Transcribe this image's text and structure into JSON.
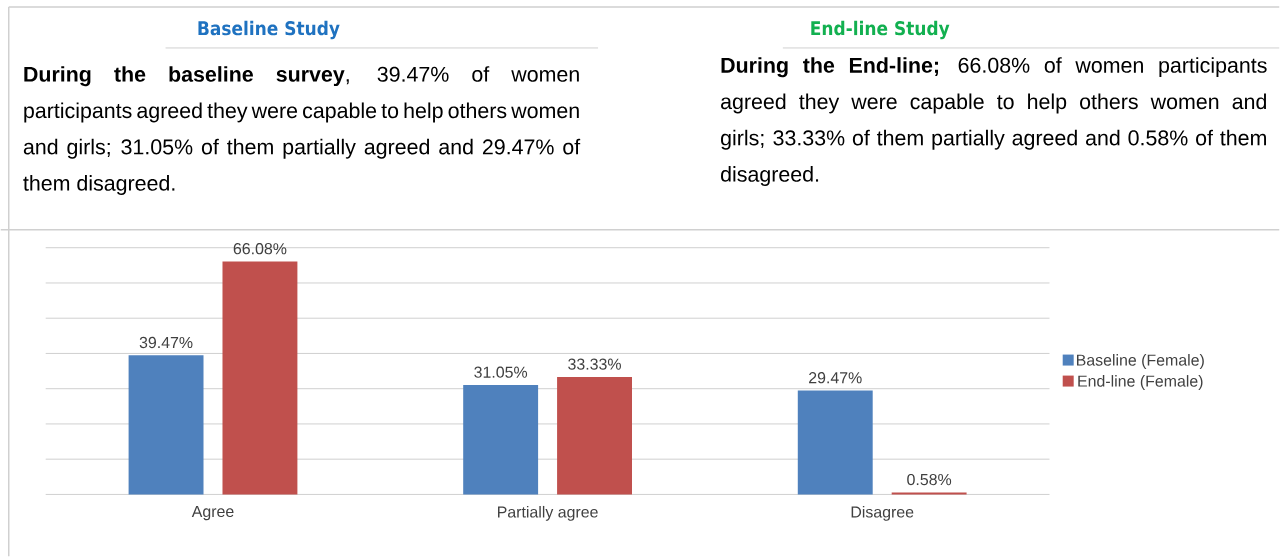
{
  "chart_data": [
    {
      "type": "other",
      "title": "Baseline Study",
      "annotations": [
        "**During the baseline survey**, 39.47% of women participants agreed they were capable to help others women and girls; 31.05% of them partially agreed and 29.47% of them disagreed."
      ]
    },
    {
      "type": "other",
      "title": "End-line Study",
      "annotations": [
        "**During the End-line;** 66.08% of women participants agreed they were capable to help others women and girls; 33.33% of them partially agreed and 0.58% of them disagreed."
      ]
    },
    {
      "type": "bar",
      "categories": [
        "Agree",
        "Partially agree",
        "Disagree"
      ],
      "series": [
        {
          "name": "Baseline (Female)",
          "color": "#4f81bd",
          "values": [
            39.47,
            31.05,
            29.47
          ],
          "value_labels": [
            "39.47%",
            "31.05%",
            "29.47%"
          ]
        },
        {
          "name": "End-line (Female)",
          "color": "#c0504d",
          "values": [
            66.08,
            33.33,
            0.58
          ],
          "value_labels": [
            "66.08%",
            "33.33%",
            "0.58%"
          ]
        }
      ],
      "ylim": [
        0,
        70
      ],
      "yticks": [
        {
          "value": 0,
          "label": null
        },
        {
          "value": 10,
          "label": null
        },
        {
          "value": 20,
          "label": null
        },
        {
          "value": 30,
          "label": null
        },
        {
          "value": 40,
          "label": null
        },
        {
          "value": 50,
          "label": null
        },
        {
          "value": 60,
          "label": null
        },
        {
          "value": 70,
          "label": null
        }
      ],
      "grid": "y",
      "legend": "right",
      "tick_labels": "x"
    }
  ]
}
